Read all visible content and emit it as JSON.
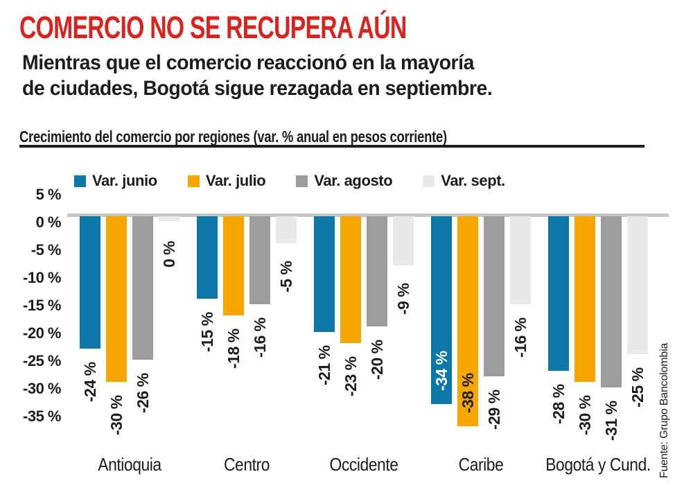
{
  "page": {
    "title": "COMERCIO NO SE RECUPERA AÚN",
    "subtitle_lines": [
      "Mientras que el comercio reaccionó en la mayoría",
      "de ciudades, Bogotá sigue rezagada en septiembre."
    ],
    "section_label": "Crecimiento del comercio por regiones (var. % anual en pesos corriente)",
    "source": "Fuente: Grupo Bancolombia"
  },
  "colors": {
    "title_red": "#d8231f",
    "text_black": "#1d1d1b",
    "zero_line_gray": "#c7c7c6",
    "rule_black": "#1d1d1b",
    "inside_label_white": "#ffffff"
  },
  "chart_data": {
    "type": "bar",
    "title": "Crecimiento del comercio por regiones (var. % anual en pesos corriente)",
    "categories": [
      "Antioquia",
      "Centro",
      "Occidente",
      "Caribe",
      "Bogotá y Cund."
    ],
    "series": [
      {
        "name": "Var. junio",
        "color": "#0d78a7",
        "values": [
          -24,
          -15,
          -21,
          -34,
          -28
        ]
      },
      {
        "name": "Var. julio",
        "color": "#f7a600",
        "values": [
          -30,
          -18,
          -23,
          -38,
          -30
        ]
      },
      {
        "name": "Var. agosto",
        "color": "#9d9d9c",
        "values": [
          -26,
          -16,
          -20,
          -29,
          -31
        ]
      },
      {
        "name": "Var. sept.",
        "color": "#e9e9e7",
        "values": [
          0,
          -5,
          -9,
          -16,
          -25
        ]
      }
    ],
    "value_label_format": "{v} %",
    "inside_value_labels": [
      {
        "category": "Caribe",
        "series": "Var. junio",
        "text_color": "#ffffff"
      },
      {
        "category": "Caribe",
        "series": "Var. julio",
        "text_color": "#1d1d1b"
      }
    ],
    "y_axis": {
      "tick_values": [
        5,
        0,
        -5,
        -10,
        -15,
        -20,
        -25,
        -30,
        -35
      ],
      "tick_label_format": "{v} %",
      "ylim": [
        -40,
        5
      ]
    },
    "grid": false,
    "legend_position": "top",
    "units": "percent annual variation, current pesos"
  }
}
